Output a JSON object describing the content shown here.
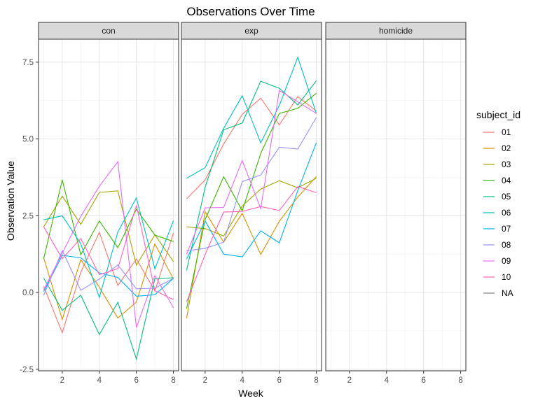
{
  "chart_data": {
    "type": "line",
    "title": "Observations Over Time",
    "xlabel": "Week",
    "ylabel": "Observation Value",
    "xlim": [
      0.72,
      8.28
    ],
    "ylim": [
      -2.55,
      8.25
    ],
    "xticks": [
      2,
      4,
      6,
      8
    ],
    "yticks": [
      -2.5,
      0.0,
      2.5,
      5.0,
      7.5
    ],
    "ytick_labels": [
      "-2.5",
      "0.0",
      "2.5",
      "5.0",
      "7.5"
    ],
    "grid": true,
    "legend_title": "subject_id",
    "legend_position": "right",
    "facets": [
      "con",
      "exp",
      "homicide"
    ],
    "series": [
      {
        "name": "01",
        "color": "#F8766D",
        "con": [
          0.2,
          -1.31,
          0.66,
          1.96,
          0.23,
          1.09,
          0.05,
          1.94
        ],
        "exp": [
          3.05,
          3.67,
          4.84,
          5.8,
          6.33,
          5.46,
          6.38,
          5.91
        ]
      },
      {
        "name": "02",
        "color": "#D89000",
        "con": [
          1.13,
          -0.88,
          1.07,
          0.17,
          -0.83,
          -0.31,
          1.58,
          0.44
        ],
        "exp": [
          -0.84,
          2.63,
          1.64,
          2.58,
          1.24,
          2.32,
          3.11,
          3.78
        ]
      },
      {
        "name": "03",
        "color": "#A3A500",
        "con": [
          2.14,
          3.14,
          2.22,
          3.26,
          3.31,
          0.89,
          1.88,
          1.01
        ],
        "exp": [
          2.14,
          2.08,
          1.84,
          2.82,
          3.37,
          3.64,
          3.41,
          3.72
        ]
      },
      {
        "name": "04",
        "color": "#39B600",
        "con": [
          1.1,
          3.67,
          1.23,
          2.33,
          1.46,
          2.71,
          1.87,
          1.66
        ],
        "exp": [
          -0.53,
          2.38,
          3.77,
          2.66,
          4.53,
          5.83,
          6.0,
          6.49
        ]
      },
      {
        "name": "05",
        "color": "#00BF7D",
        "con": [
          0.47,
          -0.58,
          -0.09,
          -1.37,
          -0.32,
          -2.17,
          0.45,
          0.48
        ],
        "exp": [
          0.72,
          3.43,
          5.3,
          5.52,
          6.88,
          6.65,
          6.11,
          6.9
        ]
      },
      {
        "name": "06",
        "color": "#00BFC4",
        "con": [
          2.37,
          2.5,
          1.59,
          -0.16,
          1.97,
          3.08,
          0.77,
          2.34
        ],
        "exp": [
          3.72,
          4.07,
          5.35,
          6.41,
          4.87,
          6.09,
          7.66,
          5.83
        ]
      },
      {
        "name": "07",
        "color": "#00B0F6",
        "con": [
          0.03,
          1.21,
          1.13,
          0.64,
          0.49,
          -0.12,
          -0.07,
          0.46
        ],
        "exp": [
          1.09,
          2.33,
          1.25,
          1.16,
          2.01,
          1.62,
          3.32,
          4.88
        ]
      },
      {
        "name": "08",
        "color": "#9590FF",
        "con": [
          -0.09,
          1.37,
          0.07,
          0.44,
          0.9,
          0.12,
          0.14,
          0.46
        ],
        "exp": [
          1.36,
          1.44,
          1.64,
          3.61,
          3.83,
          4.73,
          4.67,
          5.7
        ]
      },
      {
        "name": "09",
        "color": "#E76BF3",
        "con": [
          0.09,
          1.28,
          2.48,
          3.46,
          4.26,
          -1.14,
          0.55,
          -0.5
        ],
        "exp": [
          1.25,
          2.76,
          2.77,
          4.3,
          2.73,
          6.58,
          6.21,
          5.83
        ]
      },
      {
        "name": "10",
        "color": "#FF62BC",
        "con": [
          2.14,
          1.1,
          1.76,
          0.58,
          0.78,
          2.84,
          0.06,
          -0.23
        ],
        "exp": [
          -0.3,
          1.24,
          2.62,
          2.64,
          2.8,
          2.67,
          3.45,
          3.25
        ]
      },
      {
        "name": "NA",
        "color": "#7F7F7F",
        "con": [],
        "exp": []
      }
    ]
  }
}
